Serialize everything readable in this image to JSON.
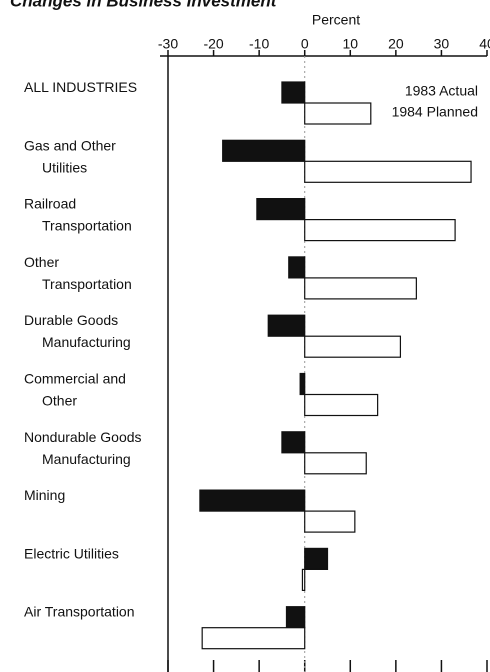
{
  "chart_data": {
    "type": "bar",
    "orientation": "horizontal",
    "title": "Changes in Business Investment",
    "xlabel": "Percent",
    "categories": [
      [
        "ALL INDUSTRIES"
      ],
      [
        "Gas and Other",
        "Utilities"
      ],
      [
        "Railroad",
        "Transportation"
      ],
      [
        "Other",
        "Transportation"
      ],
      [
        "Durable Goods",
        "Manufacturing"
      ],
      [
        "Commercial and",
        "Other"
      ],
      [
        "Nondurable Goods",
        "Manufacturing"
      ],
      [
        "Mining"
      ],
      [
        "Electric Utilities"
      ],
      [
        "Air Transportation"
      ]
    ],
    "series": [
      {
        "name": "1983 Actual",
        "color": "#111111",
        "values": [
          -5,
          -18,
          -10.5,
          -3.5,
          -8,
          -1,
          -5,
          -23,
          5,
          -4
        ]
      },
      {
        "name": "1984 Planned",
        "color": "#ffffff",
        "values": [
          14.5,
          36.5,
          33,
          24.5,
          21,
          16,
          13.5,
          11,
          -0.5,
          -22.5
        ]
      }
    ],
    "xlim": [
      -30,
      40
    ],
    "xticks": [
      -30,
      -20,
      -10,
      0,
      10,
      20,
      30,
      40
    ]
  }
}
